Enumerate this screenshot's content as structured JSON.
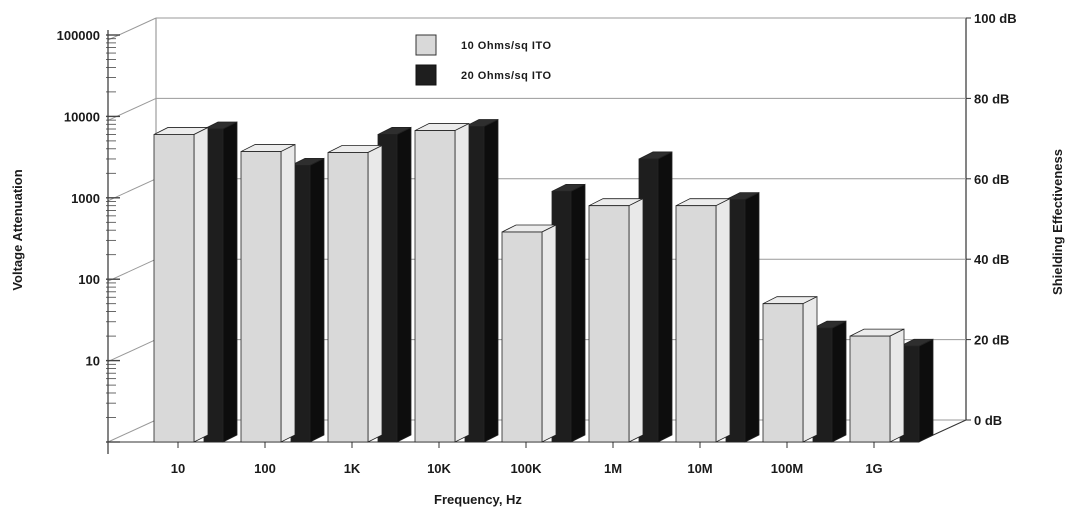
{
  "chart_data": {
    "type": "bar",
    "style": "3d-clustered",
    "xlabel": "Frequency, Hz",
    "ylabel": "Voltage Attenuation",
    "y2label": "Shielding Effectiveness",
    "yscale": "log",
    "ylim": [
      1,
      100000
    ],
    "y_ticks": [
      "10",
      "100",
      "1000",
      "10000",
      "100000"
    ],
    "y2lim": [
      0,
      100
    ],
    "y2_ticks": [
      "0 dB",
      "20 dB",
      "40 dB",
      "60 dB",
      "80 dB",
      "100 dB"
    ],
    "grid": true,
    "legend_position": "top-center",
    "categories": [
      "10",
      "100",
      "1K",
      "10K",
      "100K",
      "1M",
      "10M",
      "100M",
      "1G"
    ],
    "series": [
      {
        "name": "10 Ohms/sq ITO",
        "color": "#d9d9d9",
        "values": [
          6000,
          3700,
          3600,
          6700,
          380,
          800,
          800,
          50,
          20
        ]
      },
      {
        "name": "20 Ohms/sq ITO",
        "color": "#1e1e1e",
        "values": [
          7000,
          2500,
          6000,
          7500,
          1200,
          3000,
          950,
          25,
          15
        ]
      }
    ]
  }
}
